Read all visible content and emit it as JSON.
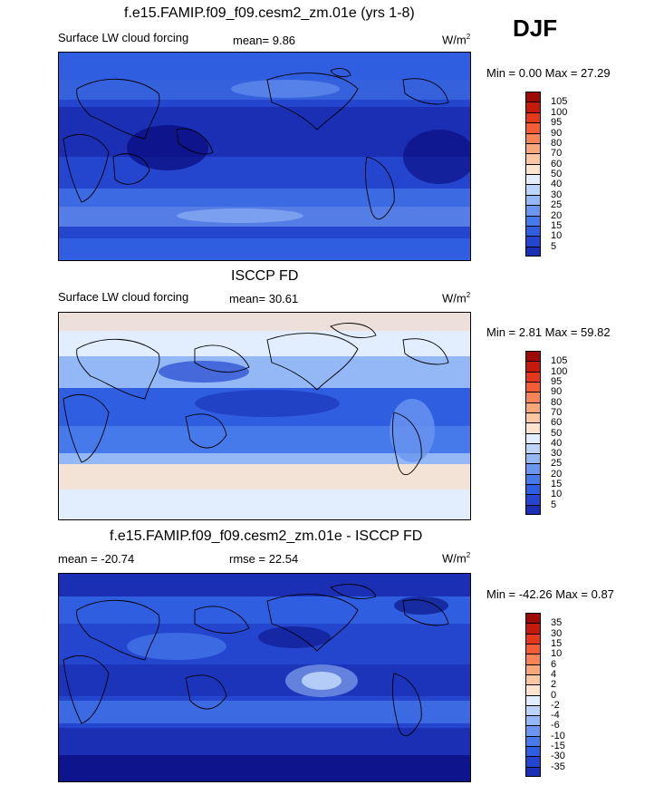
{
  "season": "DJF",
  "colors": {
    "abs_scale": [
      "#08087a",
      "#1a2fb4",
      "#2446cf",
      "#2f5fe0",
      "#4679ea",
      "#6a96f0",
      "#94b8f5",
      "#bcd4fa",
      "#e2edfd",
      "#fde4cf",
      "#fbc7a3",
      "#f8a77a",
      "#f68457",
      "#f35c34",
      "#e5371c",
      "#c41a0c",
      "#9e0a06"
    ],
    "diff_scale": [
      "#08087a",
      "#1a2fb4",
      "#2446cf",
      "#2f5fe0",
      "#4679ea",
      "#6a96f0",
      "#94b8f5",
      "#bcd4fa",
      "#e2edfd",
      "#fde4cf",
      "#fbc7a3",
      "#f8a77a",
      "#f68457",
      "#f35c34",
      "#e5371c",
      "#c41a0c",
      "#9e0a06"
    ]
  },
  "chart_data": [
    {
      "type": "heatmap",
      "title": "f.e15.FAMIP.f09_f09.cesm2_zm.01e (yrs 1-8)",
      "left_label": "Surface LW cloud forcing",
      "mean_label": "mean=   9.86",
      "units_text": "W/m",
      "units_sup": "2",
      "minmax_label": "Min =   0.00 Max =  27.29",
      "mean": 9.86,
      "min": 0.0,
      "max": 27.29,
      "colorbar_levels": [
        "105",
        "100",
        "95",
        "90",
        "80",
        "70",
        "60",
        "50",
        "40",
        "30",
        "25",
        "20",
        "15",
        "10",
        "5"
      ]
    },
    {
      "type": "heatmap",
      "title": "ISCCP FD",
      "left_label": "Surface LW cloud forcing",
      "mean_label": "mean=  30.61",
      "units_text": "W/m",
      "units_sup": "2",
      "minmax_label": "Min =   2.81 Max =  59.82",
      "mean": 30.61,
      "min": 2.81,
      "max": 59.82,
      "colorbar_levels": [
        "105",
        "100",
        "95",
        "90",
        "80",
        "70",
        "60",
        "50",
        "40",
        "30",
        "25",
        "20",
        "15",
        "10",
        "5"
      ]
    },
    {
      "type": "heatmap",
      "title": "f.e15.FAMIP.f09_f09.cesm2_zm.01e - ISCCP FD",
      "left_label": "mean = -20.74",
      "mean_label": "rmse =  22.54",
      "units_text": "W/m",
      "units_sup": "2",
      "minmax_label": "Min = -42.26 Max =   0.87",
      "mean": -20.74,
      "rmse": 22.54,
      "min": -42.26,
      "max": 0.87,
      "colorbar_levels": [
        "35",
        "30",
        "15",
        "10",
        "6",
        "4",
        "2",
        "0",
        "-2",
        "-4",
        "-6",
        "-10",
        "-15",
        "-30",
        "-35"
      ]
    }
  ]
}
